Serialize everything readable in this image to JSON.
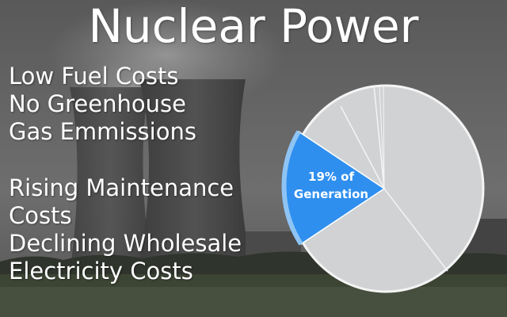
{
  "slide": {
    "title": "Nuclear Power",
    "pros": [
      "Low Fuel Costs",
      "No Greenhouse",
      "Gas Emmissions"
    ],
    "cons": [
      "Rising Maintenance",
      "Costs",
      "Declining Wholesale",
      "Electricity Costs"
    ]
  },
  "pie": {
    "highlight_label_line1": "19% of",
    "highlight_label_line2": "Generation",
    "highlight_share_percent": 19,
    "colors": {
      "highlight": "#2f8fef",
      "highlight_rim": "#8ec4f4",
      "other": "#d0d2d4",
      "separator": "#f4f4f4"
    }
  }
}
